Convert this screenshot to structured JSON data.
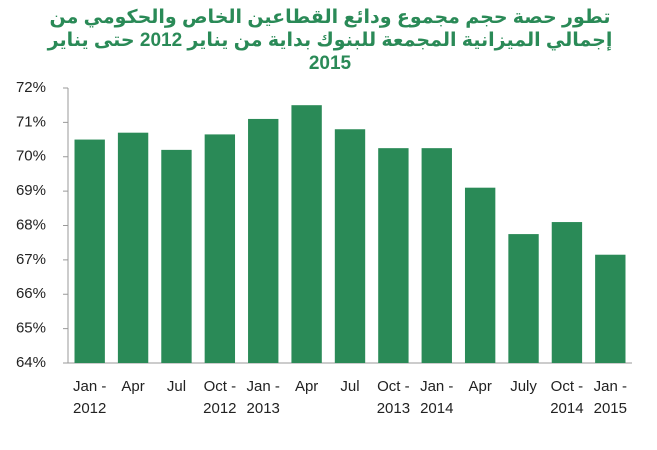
{
  "chart_data": {
    "type": "bar",
    "title": "تطور حصة حجم مجموع ودائع القطاعين الخاص والحكومي من إجمالي الميزانية المجمعة للبنوك  بداية من يناير 2012 حتى يناير 2015",
    "categories": [
      "Jan - 2012",
      "Apr",
      "Jul",
      "Oct - 2012",
      "Jan - 2013",
      "Apr",
      "Jul",
      "Oct - 2013",
      "Jan - 2014",
      "Apr",
      "July",
      "Oct - 2014",
      "Jan - 2015"
    ],
    "values": [
      70.5,
      70.7,
      70.2,
      70.65,
      71.1,
      71.5,
      70.8,
      70.25,
      70.25,
      69.1,
      67.75,
      68.1,
      67.15
    ],
    "color": "#2a8a57",
    "ylim": [
      64,
      72
    ],
    "yticks": [
      {
        "value": 64,
        "label": "64%"
      },
      {
        "value": 65,
        "label": "65%"
      },
      {
        "value": 66,
        "label": "66%"
      },
      {
        "value": 67,
        "label": "67%"
      },
      {
        "value": 68,
        "label": "68%"
      },
      {
        "value": 69,
        "label": "69%"
      },
      {
        "value": 70,
        "label": "70%"
      },
      {
        "value": 71,
        "label": "71%"
      },
      {
        "value": 72,
        "label": "72%"
      }
    ],
    "grid": false
  }
}
